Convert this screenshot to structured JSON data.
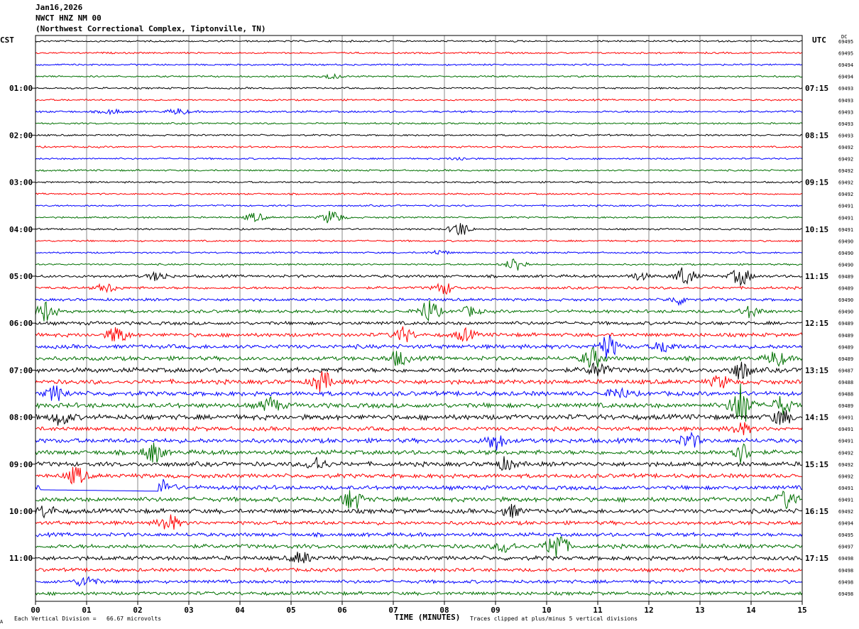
{
  "header": {
    "date": "Jan16,2026",
    "station": "NWCT HNZ NM 00",
    "location": "(Northwest Correctional Complex, Tiptonville, TN)"
  },
  "left_tz": "CST",
  "right_tz": "UTC",
  "dc_header": "DC",
  "footer": {
    "scale_text": "Each Vertical Division =   66.67 microvolts",
    "clip_text": "Traces clipped at plus/minus 5 vertical divisions",
    "corner_mark": "A"
  },
  "colors": {
    "trace_cycle": [
      "#000000",
      "#ff0000",
      "#0000ff",
      "#007000"
    ],
    "grid": "#888888",
    "frame": "#000000"
  },
  "chart_data": {
    "type": "line",
    "title": "",
    "xlabel": "TIME (MINUTES)",
    "ylabel": "",
    "xlim": [
      0,
      15
    ],
    "x_ticks": [
      "00",
      "01",
      "02",
      "03",
      "04",
      "05",
      "06",
      "07",
      "08",
      "09",
      "10",
      "11",
      "12",
      "13",
      "14",
      "15"
    ],
    "grid": true,
    "left_labels": [
      {
        "row": 4,
        "text": "01:00"
      },
      {
        "row": 8,
        "text": "02:00"
      },
      {
        "row": 12,
        "text": "03:00"
      },
      {
        "row": 16,
        "text": "04:00"
      },
      {
        "row": 20,
        "text": "05:00"
      },
      {
        "row": 24,
        "text": "06:00"
      },
      {
        "row": 28,
        "text": "07:00"
      },
      {
        "row": 32,
        "text": "08:00"
      },
      {
        "row": 36,
        "text": "09:00"
      },
      {
        "row": 40,
        "text": "10:00"
      },
      {
        "row": 44,
        "text": "11:00"
      }
    ],
    "right_labels": [
      {
        "row": 4,
        "text": "07:15"
      },
      {
        "row": 8,
        "text": "08:15"
      },
      {
        "row": 12,
        "text": "09:15"
      },
      {
        "row": 16,
        "text": "10:15"
      },
      {
        "row": 20,
        "text": "11:15"
      },
      {
        "row": 24,
        "text": "12:15"
      },
      {
        "row": 28,
        "text": "13:15"
      },
      {
        "row": 32,
        "text": "14:15"
      },
      {
        "row": 36,
        "text": "15:15"
      },
      {
        "row": 40,
        "text": "16:15"
      },
      {
        "row": 44,
        "text": "17:15"
      }
    ],
    "dc_offsets": [
      69495,
      69495,
      69494,
      69494,
      69493,
      69493,
      69493,
      69493,
      69493,
      69492,
      69492,
      69492,
      69492,
      69492,
      69491,
      69491,
      69491,
      69490,
      69490,
      69490,
      69489,
      69489,
      69490,
      69490,
      69489,
      69489,
      69489,
      69489,
      69487,
      69488,
      69488,
      69489,
      69491,
      69491,
      69491,
      69492,
      69492,
      69492,
      69491,
      69491,
      69492,
      69494,
      69495,
      69497,
      69498,
      69498,
      69498,
      69498
    ],
    "row_amplitude": [
      1.0,
      1.0,
      1.0,
      1.0,
      1.0,
      1.0,
      1.2,
      1.0,
      1.0,
      1.0,
      1.0,
      1.0,
      1.0,
      1.0,
      1.0,
      1.0,
      1.0,
      1.0,
      1.0,
      1.0,
      1.6,
      1.5,
      1.6,
      1.8,
      2.0,
      2.2,
      2.4,
      2.4,
      2.8,
      2.6,
      2.6,
      2.8,
      3.0,
      2.4,
      2.6,
      2.6,
      2.6,
      2.4,
      2.4,
      2.6,
      2.6,
      2.2,
      2.2,
      2.4,
      2.4,
      2.0,
      2.0,
      2.0
    ],
    "events": [
      {
        "row": 3,
        "minute": 5.8,
        "amplitude": 3
      },
      {
        "row": 6,
        "minute": 1.5,
        "amplitude": 3
      },
      {
        "row": 6,
        "minute": 2.8,
        "amplitude": 4
      },
      {
        "row": 10,
        "minute": 8.3,
        "amplitude": 2
      },
      {
        "row": 15,
        "minute": 4.3,
        "amplitude": 6
      },
      {
        "row": 15,
        "minute": 5.8,
        "amplitude": 10
      },
      {
        "row": 16,
        "minute": 8.3,
        "amplitude": 10
      },
      {
        "row": 18,
        "minute": 7.9,
        "amplitude": 3
      },
      {
        "row": 19,
        "minute": 9.4,
        "amplitude": 10
      },
      {
        "row": 20,
        "minute": 2.4,
        "amplitude": 6
      },
      {
        "row": 20,
        "minute": 11.8,
        "amplitude": 5
      },
      {
        "row": 20,
        "minute": 12.7,
        "amplitude": 13
      },
      {
        "row": 20,
        "minute": 13.8,
        "amplitude": 12
      },
      {
        "row": 21,
        "minute": 1.4,
        "amplitude": 6
      },
      {
        "row": 21,
        "minute": 8.0,
        "amplitude": 8
      },
      {
        "row": 22,
        "minute": 12.6,
        "amplitude": 6
      },
      {
        "row": 23,
        "minute": 0.2,
        "amplitude": 14
      },
      {
        "row": 23,
        "minute": 7.7,
        "amplitude": 16
      },
      {
        "row": 23,
        "minute": 8.5,
        "amplitude": 6
      },
      {
        "row": 23,
        "minute": 14.0,
        "amplitude": 8
      },
      {
        "row": 25,
        "minute": 1.6,
        "amplitude": 12
      },
      {
        "row": 25,
        "minute": 7.2,
        "amplitude": 10
      },
      {
        "row": 25,
        "minute": 8.4,
        "amplitude": 8
      },
      {
        "row": 26,
        "minute": 11.2,
        "amplitude": 16
      },
      {
        "row": 26,
        "minute": 12.3,
        "amplitude": 8
      },
      {
        "row": 27,
        "minute": 7.1,
        "amplitude": 10
      },
      {
        "row": 27,
        "minute": 10.9,
        "amplitude": 14
      },
      {
        "row": 27,
        "minute": 14.5,
        "amplitude": 10
      },
      {
        "row": 28,
        "minute": 11.0,
        "amplitude": 10
      },
      {
        "row": 28,
        "minute": 13.8,
        "amplitude": 12
      },
      {
        "row": 29,
        "minute": 5.6,
        "amplitude": 14
      },
      {
        "row": 29,
        "minute": 13.4,
        "amplitude": 8
      },
      {
        "row": 30,
        "minute": 0.4,
        "amplitude": 10
      },
      {
        "row": 30,
        "minute": 11.4,
        "amplitude": 8
      },
      {
        "row": 31,
        "minute": 4.6,
        "amplitude": 10
      },
      {
        "row": 31,
        "minute": 13.8,
        "amplitude": 30
      },
      {
        "row": 31,
        "minute": 14.6,
        "amplitude": 12
      },
      {
        "row": 32,
        "minute": 0.5,
        "amplitude": 10
      },
      {
        "row": 32,
        "minute": 14.6,
        "amplitude": 10
      },
      {
        "row": 33,
        "minute": 13.8,
        "amplitude": 8
      },
      {
        "row": 34,
        "minute": 9.0,
        "amplitude": 12
      },
      {
        "row": 34,
        "minute": 12.8,
        "amplitude": 10
      },
      {
        "row": 35,
        "minute": 2.3,
        "amplitude": 14
      },
      {
        "row": 35,
        "minute": 13.8,
        "amplitude": 14
      },
      {
        "row": 36,
        "minute": 5.5,
        "amplitude": 10
      },
      {
        "row": 36,
        "minute": 9.2,
        "amplitude": 8
      },
      {
        "row": 37,
        "minute": 0.8,
        "amplitude": 12
      },
      {
        "row": 38,
        "minute": 2.5,
        "amplitude": 10
      },
      {
        "row": 39,
        "minute": 6.2,
        "amplitude": 14
      },
      {
        "row": 39,
        "minute": 14.7,
        "amplitude": 12
      },
      {
        "row": 40,
        "minute": 0.2,
        "amplitude": 8
      },
      {
        "row": 40,
        "minute": 9.3,
        "amplitude": 8
      },
      {
        "row": 41,
        "minute": 2.6,
        "amplitude": 12
      },
      {
        "row": 43,
        "minute": 10.2,
        "amplitude": 22
      },
      {
        "row": 43,
        "minute": 9.2,
        "amplitude": 8
      },
      {
        "row": 44,
        "minute": 5.2,
        "amplitude": 8
      },
      {
        "row": 46,
        "minute": 1.0,
        "amplitude": 8
      }
    ],
    "flatlines": [
      {
        "row": 38,
        "start_minute": 0.1,
        "end_minute": 2.4
      }
    ]
  }
}
